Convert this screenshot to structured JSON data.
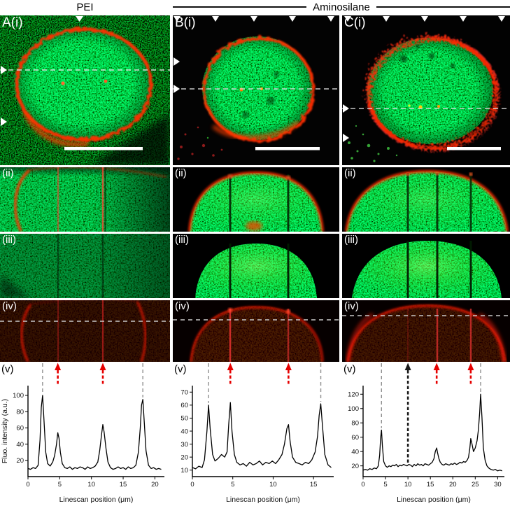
{
  "header": {
    "left": "PEI",
    "right": "Aminosilane"
  },
  "panel_labels": {
    "a": {
      "i": "A(i)",
      "ii": "(ii)",
      "iii": "(iii)",
      "iv": "(iv)",
      "v": "(v)"
    },
    "b": {
      "i": "B(i)",
      "ii": "(ii)",
      "iii": "(iii)",
      "iv": "(iv)",
      "v": "(v)"
    },
    "c": {
      "i": "C(i)",
      "ii": "(ii)",
      "iii": "(iii)",
      "iv": "(iv)",
      "v": "(v)"
    }
  },
  "colors": {
    "membrane_red": "#ff2e00",
    "cytoplasm_green": "#2ecc00",
    "marker_red": "#e60000",
    "marker_gray": "#909090",
    "marker_black": "#1a1a1a"
  },
  "chart_data": [
    {
      "id": "A(v)",
      "type": "line",
      "xlabel": "Linescan position (μm)",
      "ylabel": "Fluo. intensity (a.u.)",
      "xlim": [
        0,
        21.5
      ],
      "ylim": [
        0,
        112
      ],
      "xticks": [
        0,
        5,
        10,
        15,
        20
      ],
      "yticks": [
        20,
        40,
        60,
        80,
        100
      ],
      "x": [
        0,
        0.4,
        0.8,
        1.2,
        1.6,
        1.9,
        2.1,
        2.3,
        2.5,
        2.8,
        3.1,
        3.5,
        3.9,
        4.2,
        4.5,
        4.7,
        4.9,
        5.1,
        5.4,
        5.8,
        6.2,
        6.6,
        7,
        7.4,
        7.8,
        8.2,
        8.6,
        9,
        9.4,
        9.8,
        10.2,
        10.6,
        11,
        11.3,
        11.6,
        11.8,
        12,
        12.3,
        12.6,
        13,
        13.4,
        13.8,
        14.2,
        14.6,
        15,
        15.4,
        15.8,
        16.2,
        16.6,
        17,
        17.4,
        17.7,
        17.9,
        18.1,
        18.3,
        18.6,
        19,
        19.4,
        19.8,
        20.2,
        20.6,
        21
      ],
      "y": [
        10,
        9,
        11,
        10,
        14,
        45,
        85,
        100,
        72,
        30,
        16,
        13,
        18,
        26,
        40,
        54,
        47,
        30,
        16,
        11,
        10,
        12,
        9,
        11,
        10,
        12,
        11,
        9,
        12,
        10,
        11,
        13,
        18,
        32,
        52,
        64,
        55,
        34,
        18,
        11,
        9,
        10,
        12,
        10,
        11,
        9,
        12,
        10,
        11,
        14,
        30,
        60,
        88,
        95,
        70,
        32,
        14,
        10,
        11,
        9,
        10,
        9
      ],
      "markers": [
        {
          "x": 2.3,
          "style": "gray-line"
        },
        {
          "x": 4.7,
          "style": "red-arrow"
        },
        {
          "x": 11.8,
          "style": "red-arrow"
        },
        {
          "x": 18.1,
          "style": "gray-line"
        }
      ]
    },
    {
      "id": "B(v)",
      "type": "line",
      "xlabel": "Linescan position (μm)",
      "ylabel": "",
      "xlim": [
        0,
        17.5
      ],
      "ylim": [
        5,
        75
      ],
      "xticks": [
        0,
        5,
        10,
        15
      ],
      "yticks": [
        10,
        20,
        30,
        40,
        50,
        60,
        70
      ],
      "x": [
        0,
        0.4,
        0.8,
        1.2,
        1.5,
        1.8,
        2,
        2.2,
        2.5,
        2.8,
        3.2,
        3.6,
        4,
        4.3,
        4.5,
        4.7,
        4.9,
        5.2,
        5.5,
        5.9,
        6.3,
        6.7,
        7.1,
        7.5,
        7.9,
        8.3,
        8.7,
        9.1,
        9.5,
        9.9,
        10.3,
        10.7,
        11.1,
        11.4,
        11.7,
        11.9,
        12.1,
        12.4,
        12.8,
        13.2,
        13.6,
        14,
        14.4,
        14.8,
        15.2,
        15.5,
        15.7,
        15.9,
        16.1,
        16.4,
        16.8,
        17.2
      ],
      "y": [
        12,
        11,
        13,
        12,
        18,
        40,
        60,
        42,
        22,
        17,
        19,
        22,
        20,
        24,
        45,
        62,
        40,
        22,
        16,
        14,
        15,
        13,
        16,
        14,
        15,
        17,
        14,
        16,
        15,
        17,
        15,
        18,
        22,
        30,
        42,
        45,
        32,
        20,
        16,
        15,
        14,
        16,
        15,
        18,
        24,
        36,
        52,
        61,
        45,
        22,
        14,
        12
      ],
      "markers": [
        {
          "x": 2.0,
          "style": "gray-line"
        },
        {
          "x": 4.7,
          "style": "red-arrow"
        },
        {
          "x": 11.9,
          "style": "red-arrow"
        },
        {
          "x": 15.9,
          "style": "gray-line"
        }
      ]
    },
    {
      "id": "C(v)",
      "type": "line",
      "xlabel": "Linescan position (μm)",
      "ylabel": "",
      "xlim": [
        0,
        31.5
      ],
      "ylim": [
        5,
        132
      ],
      "xticks": [
        0,
        5,
        10,
        15,
        20,
        25,
        30
      ],
      "yticks": [
        20,
        40,
        60,
        80,
        100,
        120
      ],
      "x": [
        0,
        0.5,
        1,
        1.5,
        2,
        2.5,
        3,
        3.4,
        3.7,
        3.9,
        4.1,
        4.3,
        4.6,
        5,
        5.4,
        5.8,
        6.2,
        6.6,
        7,
        7.4,
        7.8,
        8.2,
        8.6,
        9,
        9.4,
        9.8,
        10.2,
        10.6,
        11,
        11.4,
        11.8,
        12.2,
        12.6,
        13,
        13.4,
        13.8,
        14.2,
        14.6,
        15,
        15.4,
        15.8,
        16.1,
        16.4,
        16.6,
        16.9,
        17.2,
        17.6,
        18,
        18.4,
        18.8,
        19.2,
        19.6,
        20,
        20.4,
        20.8,
        21.2,
        21.6,
        22,
        22.4,
        22.8,
        23.2,
        23.5,
        23.8,
        24,
        24.3,
        24.6,
        25,
        25.4,
        25.7,
        26,
        26.2,
        26.5,
        26.8,
        27.2,
        27.6,
        28,
        28.5,
        29,
        29.5,
        30,
        30.5,
        31
      ],
      "y": [
        14,
        15,
        14,
        16,
        15,
        17,
        16,
        20,
        35,
        58,
        70,
        48,
        26,
        20,
        18,
        20,
        19,
        21,
        20,
        22,
        19,
        21,
        20,
        22,
        21,
        20,
        22,
        21,
        19,
        22,
        20,
        23,
        21,
        22,
        20,
        23,
        22,
        21,
        23,
        25,
        30,
        40,
        45,
        38,
        30,
        25,
        22,
        21,
        23,
        22,
        21,
        23,
        22,
        24,
        22,
        23,
        25,
        24,
        26,
        25,
        28,
        32,
        45,
        58,
        50,
        40,
        45,
        55,
        70,
        95,
        120,
        88,
        45,
        28,
        20,
        17,
        15,
        14,
        15,
        13,
        14,
        13
      ],
      "markers": [
        {
          "x": 4.1,
          "style": "gray-line"
        },
        {
          "x": 10.0,
          "style": "black-arrow"
        },
        {
          "x": 16.4,
          "style": "red-arrow"
        },
        {
          "x": 24.0,
          "style": "red-arrow"
        },
        {
          "x": 26.2,
          "style": "gray-line"
        }
      ]
    }
  ]
}
